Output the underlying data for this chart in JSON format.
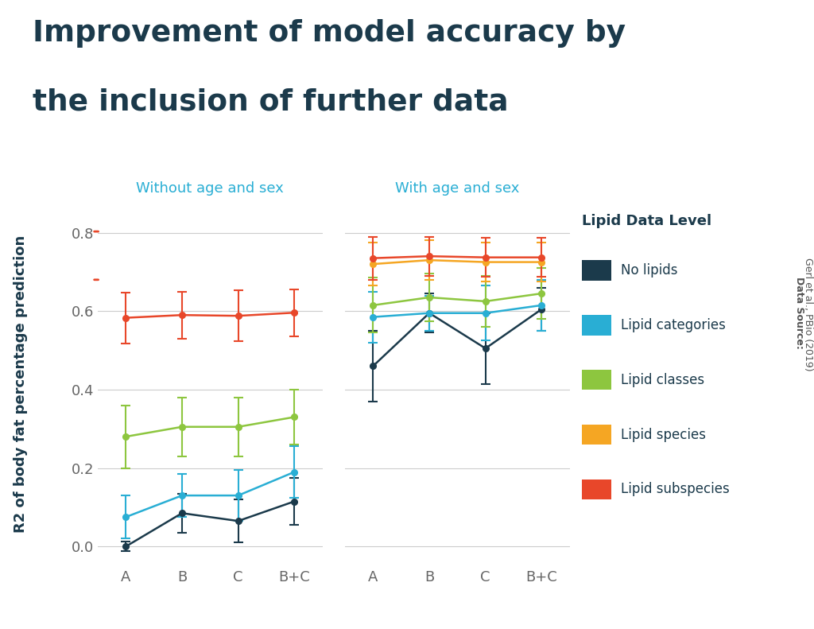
{
  "title_line1": "Improvement of model accuracy by",
  "title_line2": "the inclusion of further data",
  "ylabel": "R2 of body fat percentage prediction",
  "subtitle_left": "Without age and sex",
  "subtitle_right": "With age and sex",
  "x_labels": [
    "A",
    "B",
    "C",
    "B+C"
  ],
  "datasource_bold": "Data Source: ",
  "datasource_normal": "Gerl et al., PBio (2019)",
  "series": [
    {
      "name": "No lipids",
      "color": "#1b3a4b",
      "without": {
        "mean": [
          0.0,
          0.085,
          0.065,
          0.115
        ],
        "sd": [
          0.012,
          0.05,
          0.055,
          0.06
        ]
      },
      "with": {
        "mean": [
          0.46,
          0.595,
          0.505,
          0.605
        ],
        "sd": [
          0.09,
          0.05,
          0.09,
          0.055
        ]
      }
    },
    {
      "name": "Lipid categories",
      "color": "#29aed4",
      "without": {
        "mean": [
          0.075,
          0.13,
          0.13,
          0.19
        ],
        "sd": [
          0.055,
          0.055,
          0.065,
          0.065
        ]
      },
      "with": {
        "mean": [
          0.585,
          0.595,
          0.595,
          0.615
        ],
        "sd": [
          0.065,
          0.045,
          0.07,
          0.065
        ]
      }
    },
    {
      "name": "Lipid classes",
      "color": "#8dc63f",
      "without": {
        "mean": [
          0.28,
          0.305,
          0.305,
          0.33
        ],
        "sd": [
          0.08,
          0.075,
          0.075,
          0.07
        ]
      },
      "with": {
        "mean": [
          0.615,
          0.635,
          0.625,
          0.645
        ],
        "sd": [
          0.07,
          0.06,
          0.065,
          0.065
        ]
      }
    },
    {
      "name": "Lipid species",
      "color": "#f5a623",
      "without": {
        "mean": [
          null,
          null,
          null,
          null
        ],
        "sd": [
          null,
          null,
          null,
          null
        ]
      },
      "with": {
        "mean": [
          0.72,
          0.73,
          0.725,
          0.725
        ],
        "sd": [
          0.055,
          0.05,
          0.05,
          0.05
        ]
      }
    },
    {
      "name": "Lipid subspecies",
      "color": "#e8472a",
      "without": {
        "mean": [
          0.583,
          0.59,
          0.588,
          0.596
        ],
        "sd": [
          0.065,
          0.06,
          0.065,
          0.06
        ]
      },
      "with": {
        "mean": [
          0.735,
          0.74,
          0.737,
          0.737
        ],
        "sd": [
          0.055,
          0.05,
          0.05,
          0.05
        ]
      }
    }
  ],
  "ylim": [
    -0.05,
    0.88
  ],
  "yticks": [
    0.0,
    0.2,
    0.4,
    0.6,
    0.8
  ],
  "background_color": "#ffffff",
  "title_color": "#1b3a4b",
  "subtitle_color": "#29aed4",
  "grid_color": "#cccccc",
  "tick_label_color": "#666666",
  "legend_title_color": "#1b3a4b",
  "legend_title": "Lipid Data Level"
}
